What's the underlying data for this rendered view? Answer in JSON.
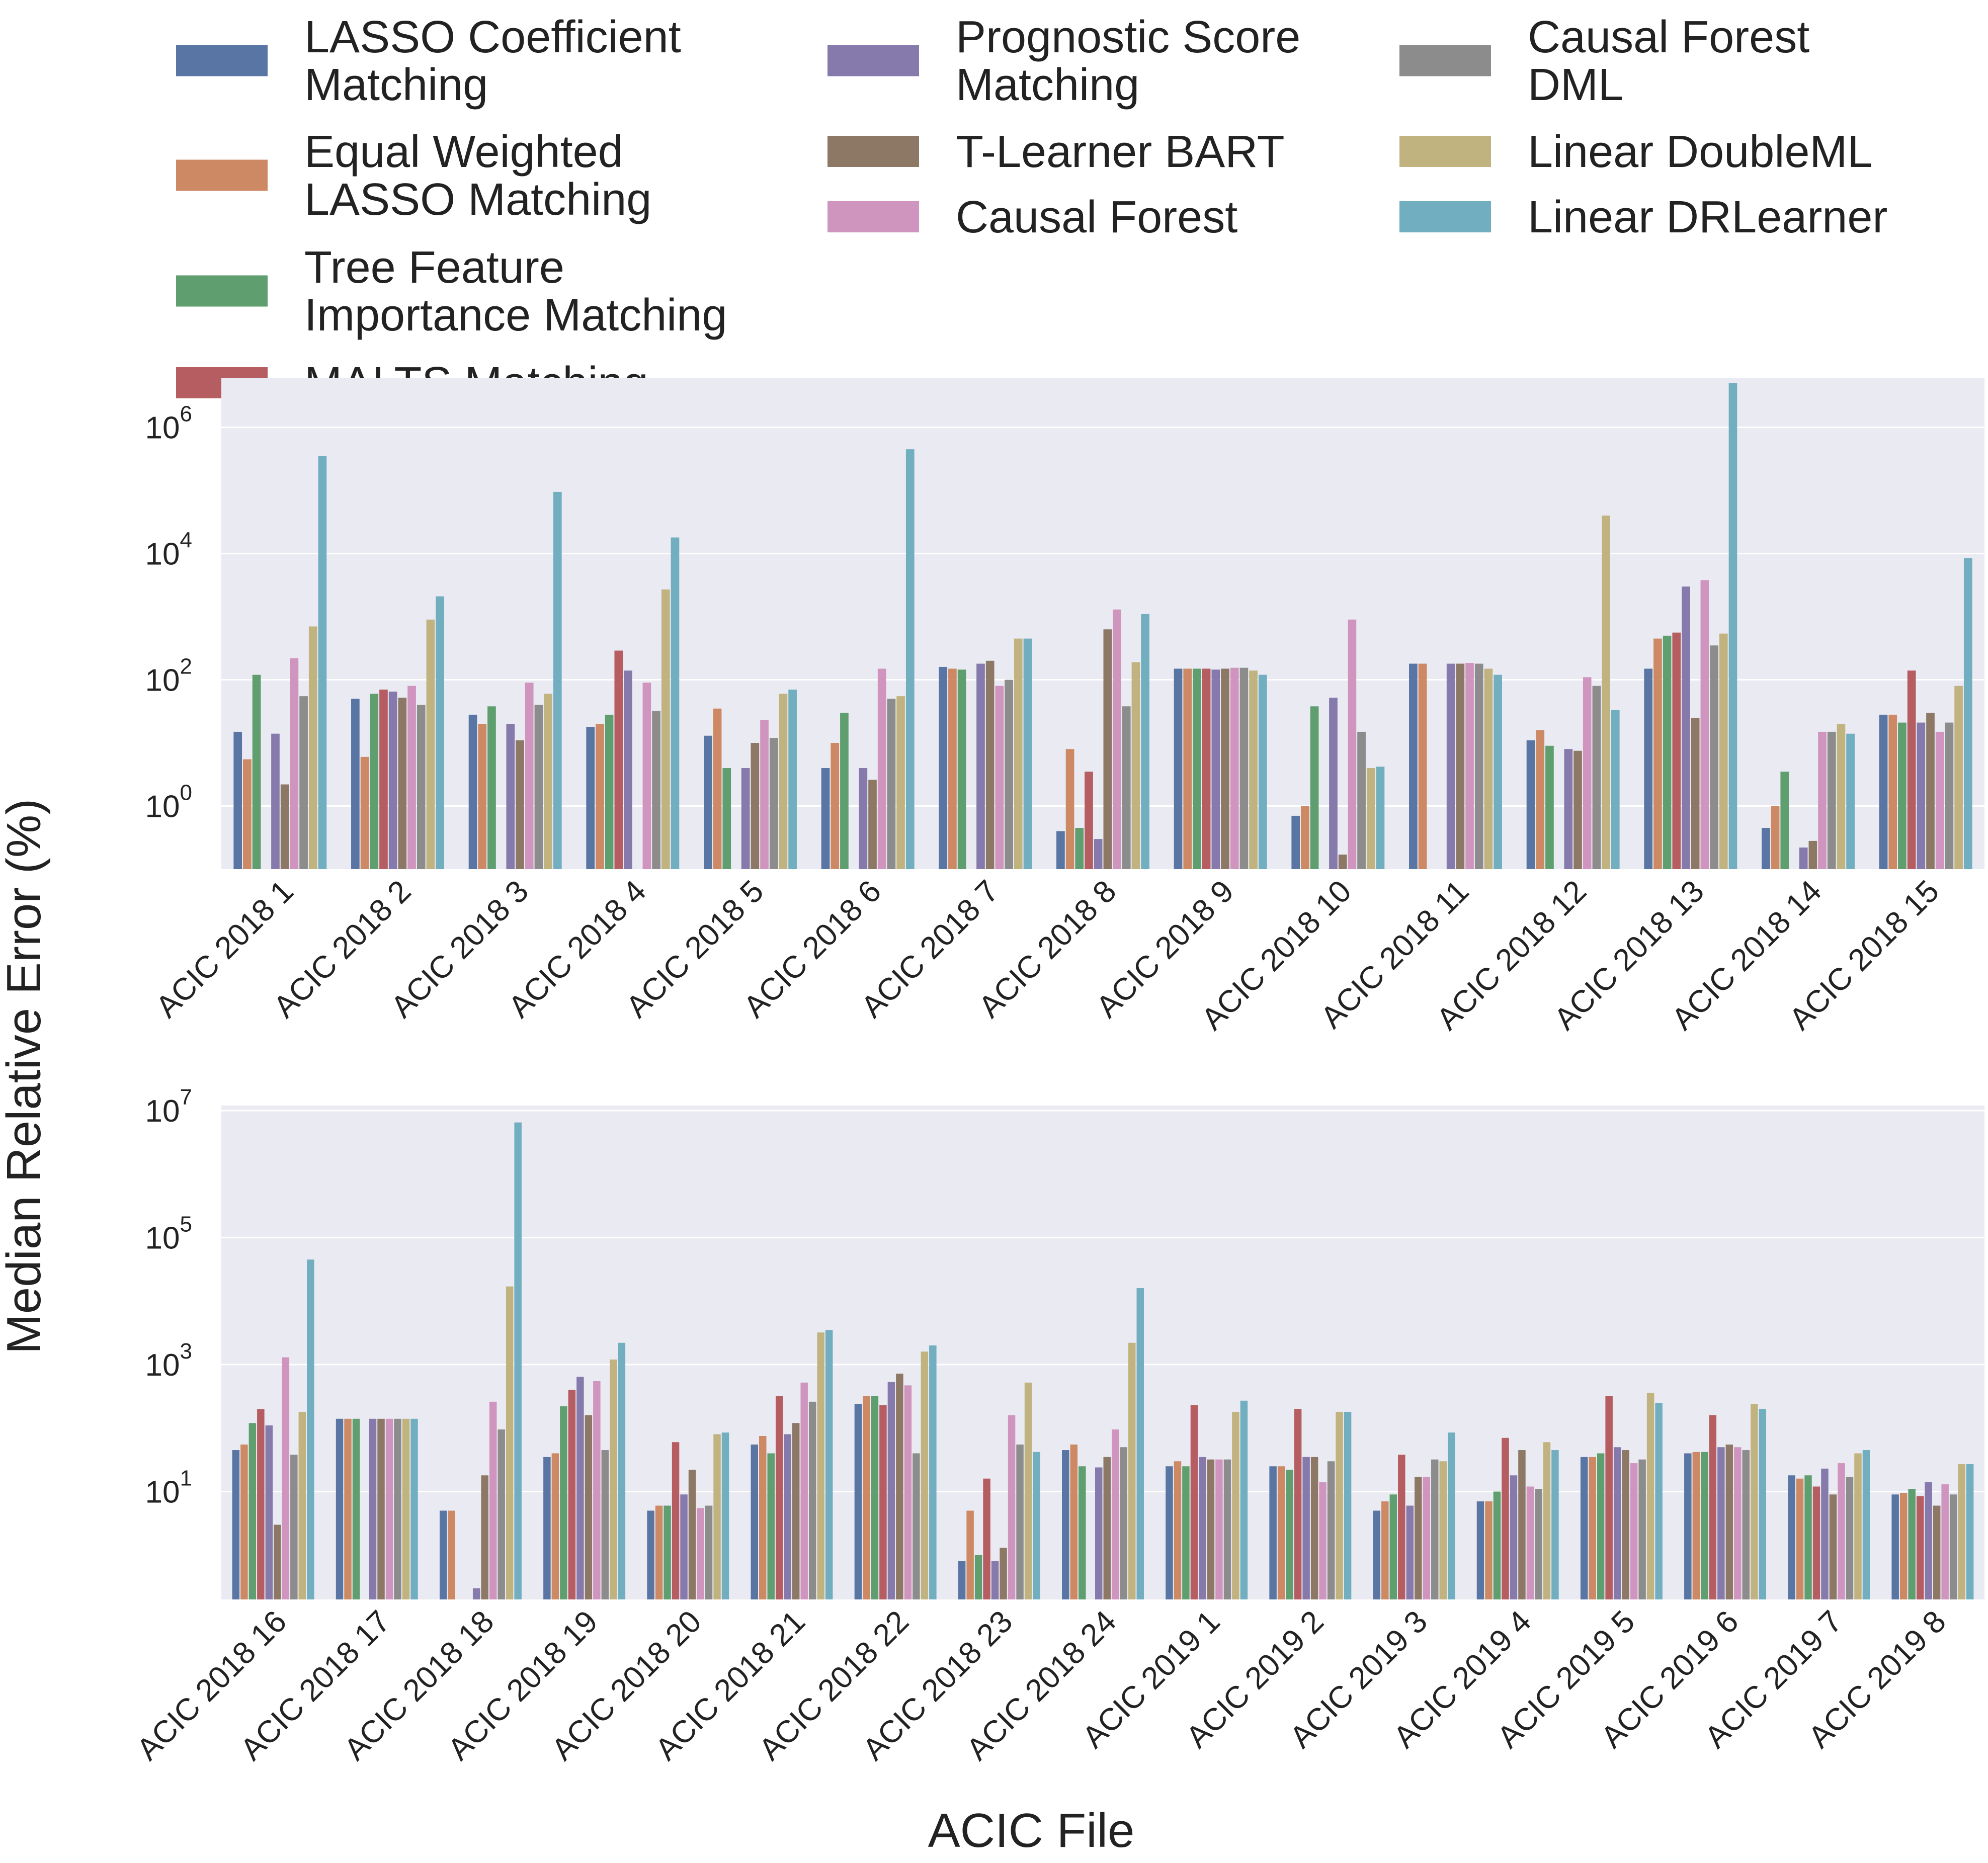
{
  "figure": {
    "ylabel": "Median Relative Error (%)",
    "xlabel": "ACIC File"
  },
  "legend": {
    "items": [
      {
        "label": "LASSO Coefficient\nMatching",
        "color": "#5875a4"
      },
      {
        "label": "Equal Weighted\nLASSO Matching",
        "color": "#cc8963"
      },
      {
        "label": "Tree Feature\nImportance Matching",
        "color": "#5f9e6e"
      },
      {
        "label": "MALTS Matching",
        "color": "#b55d60"
      },
      {
        "label": "Prognostic Score\nMatching",
        "color": "#857aab"
      },
      {
        "label": "T-Learner BART",
        "color": "#8d7866"
      },
      {
        "label": "Causal Forest",
        "color": "#d095bf"
      },
      {
        "label": "Causal Forest\nDML",
        "color": "#8c8c8c"
      },
      {
        "label": "Linear DoubleML",
        "color": "#c1b37f"
      },
      {
        "label": "Linear DRLearner",
        "color": "#71aec0"
      }
    ]
  },
  "chart_data": [
    {
      "type": "bar",
      "yscale": "log",
      "ylim": [
        0.1,
        6000000
      ],
      "yticks": [
        1,
        100,
        10000,
        1000000
      ],
      "grid": true,
      "categories": [
        "ACIC 2018 1",
        "ACIC 2018 2",
        "ACIC 2018 3",
        "ACIC 2018 4",
        "ACIC 2018 5",
        "ACIC 2018 6",
        "ACIC 2018 7",
        "ACIC 2018 8",
        "ACIC 2018 9",
        "ACIC 2018 10",
        "ACIC 2018 11",
        "ACIC 2018 12",
        "ACIC 2018 13",
        "ACIC 2018 14",
        "ACIC 2018 15"
      ],
      "series": [
        {
          "name": "LASSO Coefficient Matching",
          "values": [
            15,
            50,
            28,
            18,
            13,
            4,
            160,
            0.4,
            150,
            0.7,
            180,
            11,
            150,
            0.45,
            28
          ]
        },
        {
          "name": "Equal Weighted LASSO Matching",
          "values": [
            5.5,
            6,
            20,
            20,
            35,
            10,
            150,
            8,
            150,
            1,
            180,
            16,
            450,
            1,
            28
          ]
        },
        {
          "name": "Tree Feature Importance Matching",
          "values": [
            120,
            60,
            38,
            28,
            4,
            30,
            145,
            0.45,
            150,
            38,
            null,
            9,
            500,
            3.5,
            21
          ]
        },
        {
          "name": "MALTS Matching",
          "values": [
            null,
            70,
            null,
            290,
            null,
            null,
            null,
            3.5,
            150,
            null,
            null,
            null,
            560,
            null,
            140
          ]
        },
        {
          "name": "Prognostic Score Matching",
          "values": [
            14,
            65,
            20,
            140,
            4,
            4,
            180,
            0.3,
            145,
            52,
            180,
            8,
            3000,
            0.22,
            21
          ]
        },
        {
          "name": "T-Learner BART",
          "values": [
            2.2,
            52,
            11,
            null,
            10,
            2.6,
            200,
            630,
            150,
            0.17,
            180,
            7.5,
            25,
            0.28,
            30
          ]
        },
        {
          "name": "Causal Forest",
          "values": [
            220,
            80,
            90,
            90,
            23,
            150,
            80,
            1300,
            155,
            900,
            185,
            110,
            3800,
            15,
            15
          ]
        },
        {
          "name": "Causal Forest DML",
          "values": [
            55,
            40,
            40,
            32,
            12,
            50,
            100,
            38,
            155,
            15,
            180,
            80,
            350,
            15,
            21
          ]
        },
        {
          "name": "Linear DoubleML",
          "values": [
            700,
            900,
            60,
            2700,
            60,
            55,
            450,
            190,
            140,
            4,
            150,
            40000,
            540,
            20,
            80
          ]
        },
        {
          "name": "Linear DRLearner",
          "values": [
            350000,
            2100,
            95000,
            18000,
            70,
            450000,
            450,
            1100,
            120,
            4.2,
            120,
            33,
            5000000,
            14,
            8500
          ]
        }
      ]
    },
    {
      "type": "bar",
      "yscale": "log",
      "ylim": [
        0.2,
        12000000
      ],
      "yticks": [
        10,
        1000,
        100000,
        10000000
      ],
      "grid": true,
      "categories": [
        "ACIC 2018 16",
        "ACIC 2018 17",
        "ACIC 2018 18",
        "ACIC 2018 19",
        "ACIC 2018 20",
        "ACIC 2018 21",
        "ACIC 2018 22",
        "ACIC 2018 23",
        "ACIC 2018 24",
        "ACIC 2019 1",
        "ACIC 2019 2",
        "ACIC 2019 3",
        "ACIC 2019 4",
        "ACIC 2019 5",
        "ACIC 2019 6",
        "ACIC 2019 7",
        "ACIC 2019 8"
      ],
      "series": [
        {
          "name": "LASSO Coefficient Matching",
          "values": [
            45,
            140,
            5,
            35,
            5,
            55,
            240,
            0.8,
            45,
            25,
            25,
            5,
            7,
            35,
            40,
            18,
            9
          ]
        },
        {
          "name": "Equal Weighted LASSO Matching",
          "values": [
            55,
            140,
            5,
            40,
            6,
            75,
            320,
            5,
            55,
            30,
            25,
            7,
            7,
            35,
            42,
            16,
            9.5
          ]
        },
        {
          "name": "Tree Feature Importance Matching",
          "values": [
            120,
            140,
            null,
            220,
            6,
            40,
            320,
            1,
            25,
            25,
            22,
            9,
            10,
            40,
            42,
            18,
            11
          ]
        },
        {
          "name": "MALTS Matching",
          "values": [
            200,
            null,
            null,
            400,
            60,
            320,
            230,
            16,
            null,
            230,
            200,
            38,
            70,
            320,
            160,
            12,
            8.5
          ]
        },
        {
          "name": "Prognostic Score Matching",
          "values": [
            110,
            140,
            0.3,
            640,
            9,
            80,
            530,
            0.8,
            24,
            35,
            35,
            6,
            18,
            50,
            50,
            23,
            14
          ]
        },
        {
          "name": "T-Learner BART",
          "values": [
            3,
            140,
            18,
            160,
            22,
            120,
            720,
            1.3,
            35,
            32,
            35,
            17,
            45,
            45,
            55,
            9,
            6
          ]
        },
        {
          "name": "Causal Forest",
          "values": [
            1300,
            140,
            260,
            550,
            5.5,
            520,
            470,
            160,
            95,
            32,
            14,
            17,
            12,
            28,
            50,
            28,
            13
          ]
        },
        {
          "name": "Causal Forest DML",
          "values": [
            38,
            140,
            95,
            45,
            6,
            260,
            40,
            55,
            50,
            32,
            30,
            32,
            11,
            32,
            45,
            17,
            9
          ]
        },
        {
          "name": "Linear DoubleML",
          "values": [
            180,
            140,
            17000,
            1200,
            80,
            3200,
            1600,
            520,
            2200,
            180,
            180,
            30,
            60,
            360,
            240,
            40,
            27
          ]
        },
        {
          "name": "Linear DRLearner",
          "values": [
            45000,
            140,
            6500000,
            2200,
            85,
            3500,
            2000,
            42,
            16000,
            270,
            180,
            85,
            45,
            250,
            200,
            45,
            27
          ]
        }
      ]
    }
  ]
}
